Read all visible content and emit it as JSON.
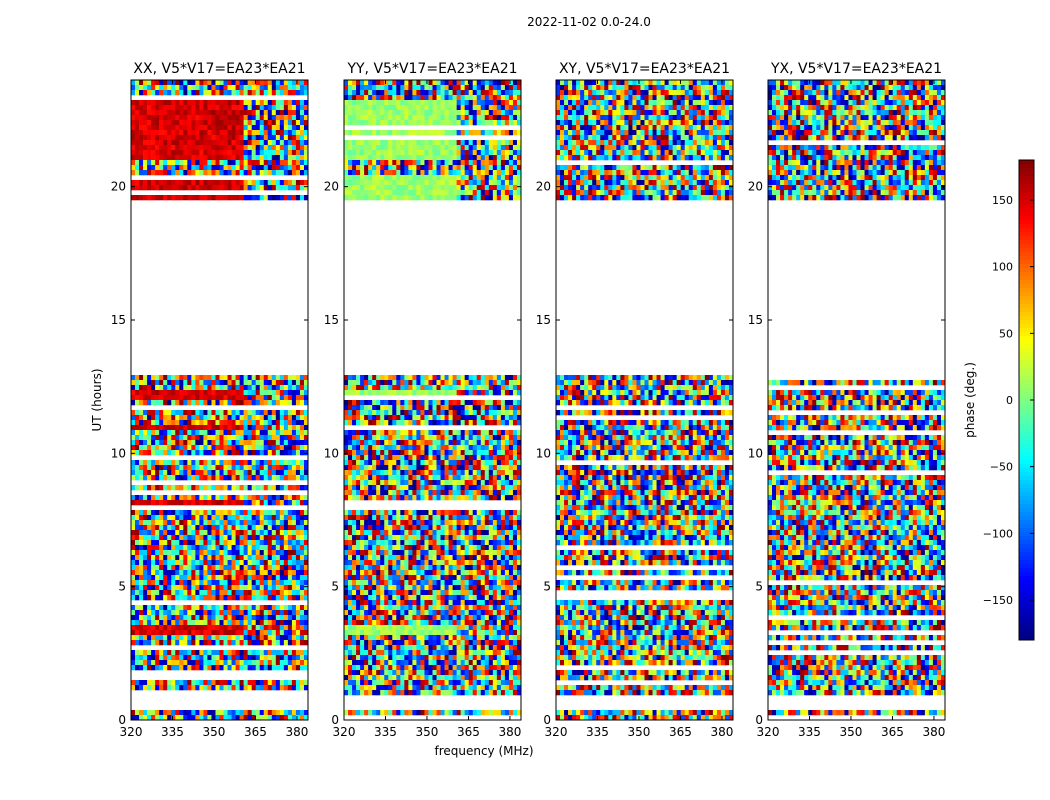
{
  "chart_data": {
    "type": "heatmap",
    "title": "2022-11-02 0.0-24.0",
    "xlabel": "frequency (MHz)",
    "ylabel": "UT (hours)",
    "xlim": [
      320,
      384
    ],
    "ylim": [
      0,
      24
    ],
    "xticks": [
      "320",
      "335",
      "350",
      "365",
      "380"
    ],
    "xtick_values": [
      320,
      335,
      350,
      365,
      380
    ],
    "yticks": [
      "0",
      "5",
      "10",
      "15",
      "20"
    ],
    "ytick_values": [
      0,
      5,
      10,
      15,
      20
    ],
    "panels": [
      {
        "title": "XX, V5*V17=EA23*EA21",
        "coherent_phase_deg": 150
      },
      {
        "title": "YY, V5*V17=EA23*EA21",
        "coherent_phase_deg": 10
      },
      {
        "title": "XY, V5*V17=EA23*EA21",
        "coherent_phase_deg": null
      },
      {
        "title": "YX, V5*V17=EA23*EA21",
        "coherent_phase_deg": null
      }
    ],
    "data_time_ranges_hours": [
      [
        0.0,
        0.4
      ],
      [
        0.9,
        12.9
      ],
      [
        19.5,
        24.0
      ]
    ],
    "coherent_time_ranges_hours": [
      [
        3.1,
        3.6
      ],
      [
        7.8,
        8.3
      ],
      [
        10.8,
        11.1
      ],
      [
        12.0,
        12.4
      ],
      [
        19.5,
        20.5
      ],
      [
        21.0,
        23.3
      ]
    ],
    "coherent_freq_range_mhz": [
      320,
      361
    ],
    "colorbar": {
      "label": "phase (deg.)",
      "range": [
        -180,
        180
      ],
      "ticks": [
        "150",
        "100",
        "50",
        "0",
        "−50",
        "−100",
        "−150"
      ],
      "tick_values": [
        150,
        100,
        50,
        0,
        -50,
        -100,
        -150
      ]
    }
  }
}
